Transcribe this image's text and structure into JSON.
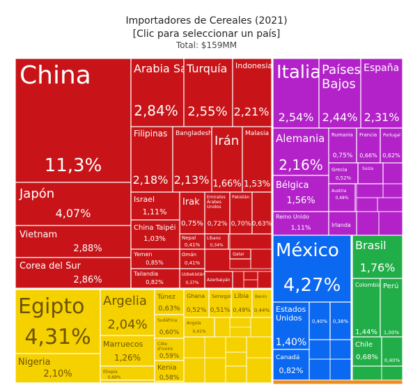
{
  "header": {
    "title": "Importadores de Cereales (2021)",
    "subtitle": "[Clic para seleccionar un país]",
    "total": "Total: $159MM"
  },
  "chart_data": {
    "type": "treemap",
    "colors": {
      "asia": "#c81418",
      "africa": "#f6d100",
      "europe": "#b222c8",
      "north_america": "#0b68f0",
      "south_america": "#21ad47",
      "other": "#f08c1e"
    },
    "items": [
      {
        "name": "China",
        "value": "11,3%",
        "group": "asia"
      },
      {
        "name": "Japón",
        "value": "4,07%",
        "group": "asia"
      },
      {
        "name": "Vietnam",
        "value": "2,88%",
        "group": "asia"
      },
      {
        "name": "Corea del Sur",
        "value": "2,86%",
        "group": "asia"
      },
      {
        "name": "Arabia Saudita",
        "value": "2,84%",
        "group": "asia"
      },
      {
        "name": "Turquía",
        "value": "2,55%",
        "group": "asia"
      },
      {
        "name": "Indonesia",
        "value": "2,21%",
        "group": "asia"
      },
      {
        "name": "Filipinas",
        "value": "2,18%",
        "group": "asia"
      },
      {
        "name": "Bangladesh",
        "value": "2,13%",
        "group": "asia"
      },
      {
        "name": "Irán",
        "value": "1,66%",
        "group": "asia"
      },
      {
        "name": "Malasia",
        "value": "1,53%",
        "group": "asia"
      },
      {
        "name": "Israel",
        "value": "1,11%",
        "group": "asia"
      },
      {
        "name": "Irak",
        "value": "0,75%",
        "group": "asia"
      },
      {
        "name": "Emiratos Árabes Unidos",
        "value": "0,72%",
        "group": "asia"
      },
      {
        "name": "Pakistán",
        "value": "0,70%",
        "group": "asia"
      },
      {
        "name": "",
        "value": "0,63%",
        "group": "asia"
      },
      {
        "name": "China Taipéi",
        "value": "1,03%",
        "group": "asia"
      },
      {
        "name": "Nepal",
        "value": "0,41%",
        "group": "asia"
      },
      {
        "name": "Líbano",
        "value": "0,34%",
        "group": "asia"
      },
      {
        "name": "Yemen",
        "value": "0,85%",
        "group": "asia"
      },
      {
        "name": "Omán",
        "value": "0,41%",
        "group": "asia"
      },
      {
        "name": "Qatar",
        "value": "",
        "group": "asia"
      },
      {
        "name": "Tailandia",
        "value": "0,82%",
        "group": "asia"
      },
      {
        "name": "Uzbekistán",
        "value": "0,37%",
        "group": "asia"
      },
      {
        "name": "Azerbaiyán",
        "value": "",
        "group": "asia"
      },
      {
        "name": "Egipto",
        "value": "4,31%",
        "group": "africa"
      },
      {
        "name": "Nigeria",
        "value": "2,10%",
        "group": "africa"
      },
      {
        "name": "Argelia",
        "value": "2,04%",
        "group": "africa"
      },
      {
        "name": "Marruecos",
        "value": "1,26%",
        "group": "africa"
      },
      {
        "name": "Etiopía",
        "value": "0,69%",
        "group": "africa"
      },
      {
        "name": "Túnez",
        "value": "0,63%",
        "group": "africa"
      },
      {
        "name": "Sudáfrica",
        "value": "0,60%",
        "group": "africa"
      },
      {
        "name": "Côte d'Ivoire",
        "value": "0,59%",
        "group": "africa"
      },
      {
        "name": "Kenia",
        "value": "0,58%",
        "group": "africa"
      },
      {
        "name": "Ghana",
        "value": "0,52%",
        "group": "africa"
      },
      {
        "name": "Senegal",
        "value": "0,51%",
        "group": "africa"
      },
      {
        "name": "Libia",
        "value": "0,49%",
        "group": "africa"
      },
      {
        "name": "Benín",
        "value": "0,44%",
        "group": "africa"
      },
      {
        "name": "Angola",
        "value": "0,41%",
        "group": "africa"
      },
      {
        "name": "Italia",
        "value": "2,54%",
        "group": "europe"
      },
      {
        "name": "Países Bajos",
        "value": "2,44%",
        "group": "europe"
      },
      {
        "name": "España",
        "value": "2,31%",
        "group": "europe"
      },
      {
        "name": "Alemania",
        "value": "2,16%",
        "group": "europe"
      },
      {
        "name": "Rumania",
        "value": "0,75%",
        "group": "europe"
      },
      {
        "name": "Francia",
        "value": "0,66%",
        "group": "europe"
      },
      {
        "name": "Portugal",
        "value": "0,62%",
        "group": "europe"
      },
      {
        "name": "Bélgica",
        "value": "1,56%",
        "group": "europe"
      },
      {
        "name": "Grecia",
        "value": "0,52%",
        "group": "europe"
      },
      {
        "name": "Suiza",
        "value": "",
        "group": "europe"
      },
      {
        "name": "Austria",
        "value": "0,48%",
        "group": "europe"
      },
      {
        "name": "Reino Unido",
        "value": "1,11%",
        "group": "europe"
      },
      {
        "name": "Irlanda",
        "value": "",
        "group": "europe"
      },
      {
        "name": "México",
        "value": "4,27%",
        "group": "north_america"
      },
      {
        "name": "Estados Unidos",
        "value": "1,40%",
        "group": "north_america"
      },
      {
        "name": "",
        "value": "0,40%",
        "group": "north_america"
      },
      {
        "name": "",
        "value": "0,38%",
        "group": "north_america"
      },
      {
        "name": "Canadá",
        "value": "0,82%",
        "group": "north_america"
      },
      {
        "name": "Brasil",
        "value": "1,76%",
        "group": "south_america"
      },
      {
        "name": "Colombia",
        "value": "1,44%",
        "group": "south_america"
      },
      {
        "name": "Perú",
        "value": "1,00%",
        "group": "south_america"
      },
      {
        "name": "Chile",
        "value": "0,68%",
        "group": "south_america"
      },
      {
        "name": "",
        "value": "0,40%",
        "group": "south_america"
      }
    ]
  }
}
